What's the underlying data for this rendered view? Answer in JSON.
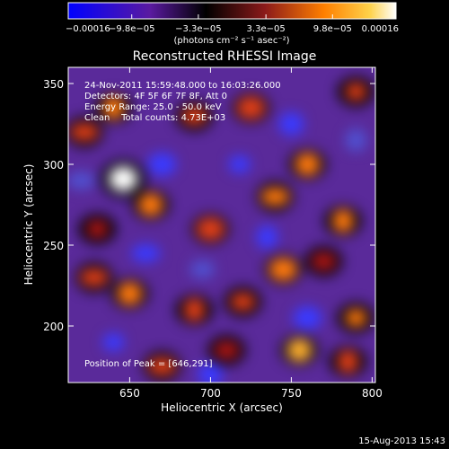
{
  "colorbar": {
    "tick_labels": [
      "−0.00016",
      "−9.8e−05",
      "−3.3e−05",
      "3.3e−05",
      "9.8e−05",
      "0.00016"
    ],
    "ticks": [
      -0.00016,
      -9.8e-05,
      -3.3e-05,
      3.3e-05,
      9.8e-05,
      0.00016
    ],
    "range": [
      -0.00016,
      0.00016
    ],
    "units": "(photons cm⁻² s⁻¹ asec⁻²)",
    "colors": [
      "#0000ff",
      "#000000",
      "#8b1a1a",
      "#ff7f00",
      "#ffffff"
    ]
  },
  "chart_data": {
    "type": "heatmap",
    "title": "Reconstructed RHESSI Image",
    "xlabel": "Heliocentric X (arcsec)",
    "ylabel": "Heliocentric Y (arcsec)",
    "xlim": [
      612,
      802
    ],
    "ylim": [
      165,
      360
    ],
    "xticks": [
      650,
      700,
      750,
      800
    ],
    "yticks": [
      200,
      250,
      300,
      350
    ],
    "annotations": [
      "24-Nov-2011 15:59:48.000 to 16:03:26.000",
      "Detectors: 4F 5F 6F 7F 8F, Att 0",
      "Energy Range: 25.0 - 50.0 keV",
      "Clean    Total counts: 4.73E+03"
    ],
    "peak_label": "Position of Peak = [646,291]",
    "peak": {
      "x": 646,
      "y": 291
    },
    "sources": [
      {
        "x": 646,
        "y": 291,
        "v": 1.0
      },
      {
        "x": 663,
        "y": 275,
        "v": 0.55
      },
      {
        "x": 622,
        "y": 320,
        "v": 0.45
      },
      {
        "x": 640,
        "y": 335,
        "v": 0.5
      },
      {
        "x": 690,
        "y": 330,
        "v": 0.45
      },
      {
        "x": 725,
        "y": 335,
        "v": 0.45
      },
      {
        "x": 790,
        "y": 345,
        "v": 0.45
      },
      {
        "x": 760,
        "y": 300,
        "v": 0.55
      },
      {
        "x": 740,
        "y": 280,
        "v": 0.5
      },
      {
        "x": 782,
        "y": 265,
        "v": 0.5
      },
      {
        "x": 770,
        "y": 240,
        "v": 0.4
      },
      {
        "x": 700,
        "y": 260,
        "v": 0.45
      },
      {
        "x": 630,
        "y": 260,
        "v": 0.4
      },
      {
        "x": 650,
        "y": 220,
        "v": 0.6
      },
      {
        "x": 628,
        "y": 230,
        "v": 0.45
      },
      {
        "x": 690,
        "y": 210,
        "v": 0.45
      },
      {
        "x": 720,
        "y": 215,
        "v": 0.45
      },
      {
        "x": 745,
        "y": 235,
        "v": 0.55
      },
      {
        "x": 790,
        "y": 205,
        "v": 0.5
      },
      {
        "x": 755,
        "y": 185,
        "v": 0.7
      },
      {
        "x": 670,
        "y": 175,
        "v": 0.45
      },
      {
        "x": 785,
        "y": 178,
        "v": 0.45
      },
      {
        "x": 710,
        "y": 185,
        "v": 0.4
      },
      {
        "x": 670,
        "y": 300,
        "v": -0.5
      },
      {
        "x": 718,
        "y": 300,
        "v": -0.55
      },
      {
        "x": 750,
        "y": 325,
        "v": -0.55
      },
      {
        "x": 660,
        "y": 245,
        "v": -0.5
      },
      {
        "x": 735,
        "y": 255,
        "v": -0.45
      },
      {
        "x": 695,
        "y": 235,
        "v": -0.4
      },
      {
        "x": 760,
        "y": 205,
        "v": -0.45
      },
      {
        "x": 640,
        "y": 190,
        "v": -0.5
      },
      {
        "x": 700,
        "y": 170,
        "v": -0.45
      },
      {
        "x": 620,
        "y": 290,
        "v": -0.35
      },
      {
        "x": 790,
        "y": 315,
        "v": -0.4
      }
    ]
  },
  "footer": {
    "timestamp": "15-Aug-2013 15:43"
  }
}
